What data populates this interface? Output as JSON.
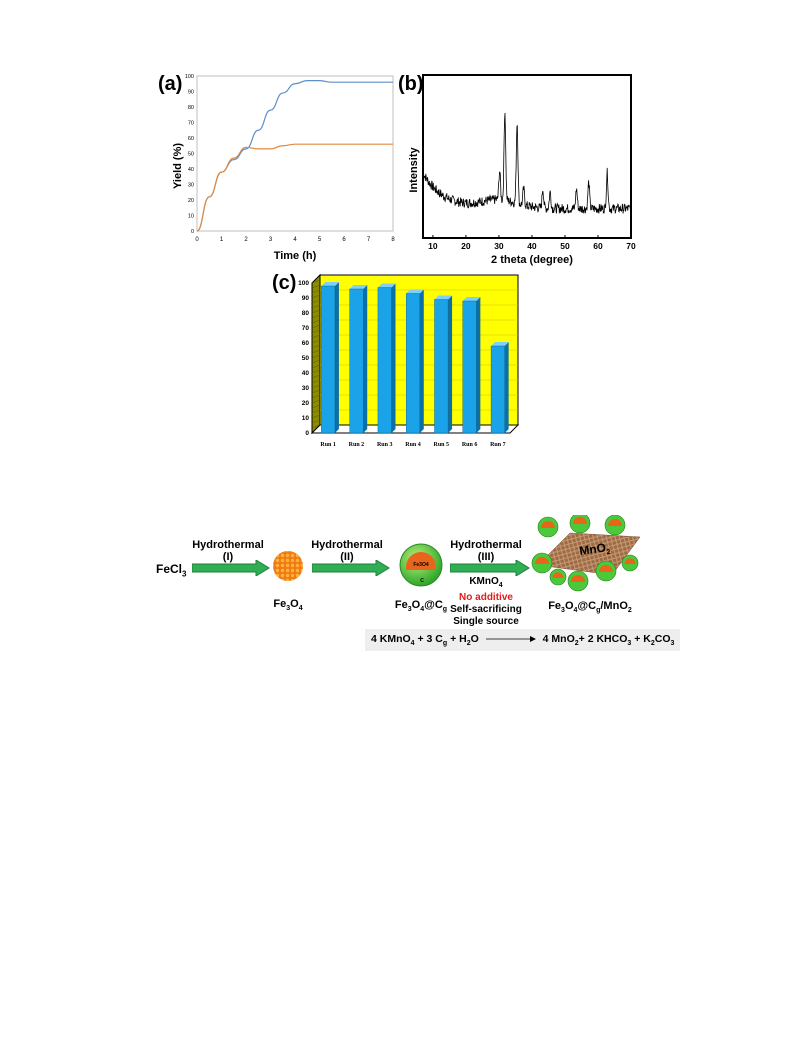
{
  "panels": {
    "a": "(a)",
    "b": "(b)",
    "c": "(c)"
  },
  "chart_a": {
    "type": "line",
    "xlabel": "Time (h)",
    "ylabel": "Yield (%)",
    "xlim": [
      0,
      8
    ],
    "ylim": [
      0,
      100
    ],
    "xticks": [
      "0",
      "1",
      "2",
      "3",
      "4",
      "5",
      "6",
      "7",
      "8"
    ],
    "yticks": [
      "0",
      "10",
      "20",
      "30",
      "40",
      "50",
      "60",
      "70",
      "80",
      "90",
      "100"
    ],
    "series": [
      {
        "color": "#5b8ec9",
        "x": [
          0,
          0.5,
          1,
          1.5,
          2,
          2.5,
          3,
          3.5,
          4,
          4.5,
          5,
          5.5,
          6,
          7,
          8
        ],
        "y": [
          0,
          22,
          38,
          46,
          53,
          65,
          78,
          89,
          95,
          97,
          97,
          96,
          96,
          96,
          96
        ]
      },
      {
        "color": "#e08a3c",
        "x": [
          0,
          0.5,
          1,
          1.5,
          2,
          2.5,
          3,
          3.5,
          4,
          5,
          6,
          7,
          8
        ],
        "y": [
          0,
          22,
          38,
          47,
          54,
          53,
          53,
          55,
          56,
          56,
          56,
          56,
          56
        ]
      }
    ]
  },
  "chart_b": {
    "type": "line",
    "xlabel": "2 theta (degree)",
    "ylabel": "Intensity",
    "xlim": [
      7,
      70
    ],
    "xticks": [
      "10",
      "20",
      "30",
      "40",
      "50",
      "60",
      "70"
    ],
    "peaks": [
      {
        "x": 30.2,
        "h": 0.18
      },
      {
        "x": 31.8,
        "h": 0.55
      },
      {
        "x": 35.5,
        "h": 0.5
      },
      {
        "x": 37.5,
        "h": 0.1
      },
      {
        "x": 43.3,
        "h": 0.12
      },
      {
        "x": 45.5,
        "h": 0.1
      },
      {
        "x": 53.5,
        "h": 0.12
      },
      {
        "x": 57.2,
        "h": 0.16
      },
      {
        "x": 62.8,
        "h": 0.22
      }
    ]
  },
  "chart_c": {
    "type": "bar",
    "categories": [
      "Run 1",
      "Run 2",
      "Run 3",
      "Run 4",
      "Run 5",
      "Run 6",
      "Run 7"
    ],
    "values": [
      98,
      96,
      97,
      93,
      89,
      88,
      58
    ],
    "ylim": [
      0,
      100
    ],
    "yticks": [
      "0",
      "10",
      "20",
      "30",
      "40",
      "50",
      "60",
      "70",
      "80",
      "90",
      "100"
    ],
    "bar_color": "#1aa3e8",
    "wall_color": "#ffff00"
  },
  "scheme": {
    "start": "FeCl",
    "start_sub": "3",
    "step1_label": "Hydrothermal",
    "step1_num": "(I)",
    "prod1_main": "Fe",
    "prod1_sub1": "3",
    "prod1_mid": "O",
    "prod1_sub2": "4",
    "step2_label": "Hydrothermal",
    "step2_num": "(II)",
    "prod2_main": "Fe",
    "prod2_sub1": "3",
    "prod2_mid": "O",
    "prod2_sub2": "4",
    "prod2_tail": "@C",
    "prod2_sub3": "g",
    "sphere_core": "Fe3O4",
    "sphere_shell": "C",
    "step3_label": "Hydrothermal",
    "step3_num": "(III)",
    "reagent": "KMnO",
    "reagent_sub": "4",
    "no_additive": "No additive",
    "note1": "Self-sacrificing",
    "note2": "Single source",
    "final_main": "Fe",
    "final_sub1": "3",
    "final_mid": "O",
    "final_sub2": "4",
    "final_tail": "@C",
    "final_sub3": "g",
    "final_tail2": "/MnO",
    "final_sub4": "2",
    "mno2": "MnO",
    "mno2_sub": "2",
    "equation": {
      "lhs": "4 KMnO",
      "lhs_sub": "4",
      "lhs2": " + 3 C",
      "lhs_sub2": "g",
      "lhs3": " + H",
      "lhs_sub3": "2",
      "lhs4": "O",
      "rhs": "4 MnO",
      "rhs_sub": "2",
      "rhs2": "+ 2 KHCO",
      "rhs_sub2": "3",
      "rhs3": " + K",
      "rhs_sub3": "2",
      "rhs4": "CO",
      "rhs_sub4": "3"
    }
  }
}
